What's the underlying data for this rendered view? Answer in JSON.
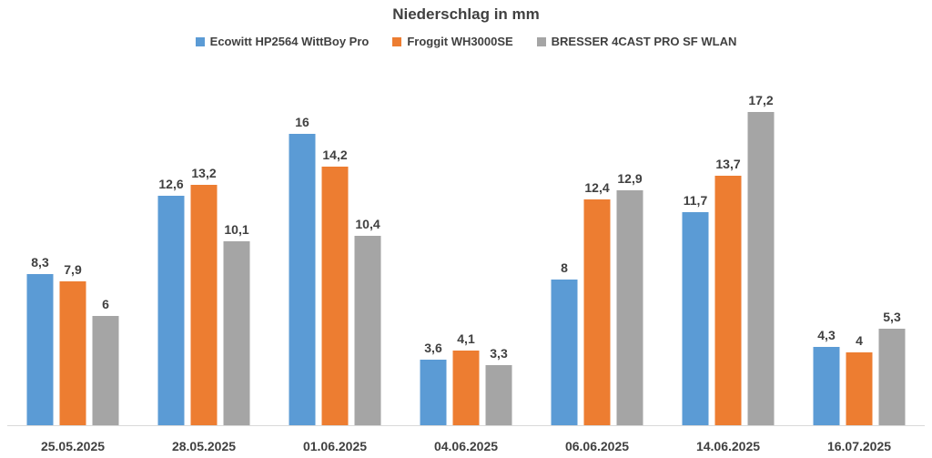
{
  "chart_data": {
    "type": "bar",
    "title": "Niederschlag in mm",
    "categories": [
      "25.05.2025",
      "28.05.2025",
      "01.06.2025",
      "04.06.2025",
      "06.06.2025",
      "14.06.2025",
      "16.07.2025"
    ],
    "series": [
      {
        "name": "Ecowitt HP2564 WittBoy Pro",
        "color": "#5B9BD5",
        "values": [
          8.3,
          12.6,
          16,
          3.6,
          8,
          11.7,
          4.3
        ],
        "labels": [
          "8,3",
          "12,6",
          "16",
          "3,6",
          "8",
          "11,7",
          "4,3"
        ]
      },
      {
        "name": "Froggit WH3000SE",
        "color": "#ED7D31",
        "values": [
          7.9,
          13.2,
          14.2,
          4.1,
          12.4,
          13.7,
          4
        ],
        "labels": [
          "7,9",
          "13,2",
          "14,2",
          "4,1",
          "12,4",
          "13,7",
          "4"
        ]
      },
      {
        "name": "BRESSER 4CAST PRO SF WLAN",
        "color": "#A5A5A5",
        "values": [
          6,
          10.1,
          10.4,
          3.3,
          12.9,
          17.2,
          5.3
        ],
        "labels": [
          "6",
          "10,1",
          "10,4",
          "3,3",
          "12,9",
          "17,2",
          "5,3"
        ]
      }
    ],
    "ylim": [
      0,
      17.2
    ],
    "grid": false,
    "legend_position": "top"
  }
}
